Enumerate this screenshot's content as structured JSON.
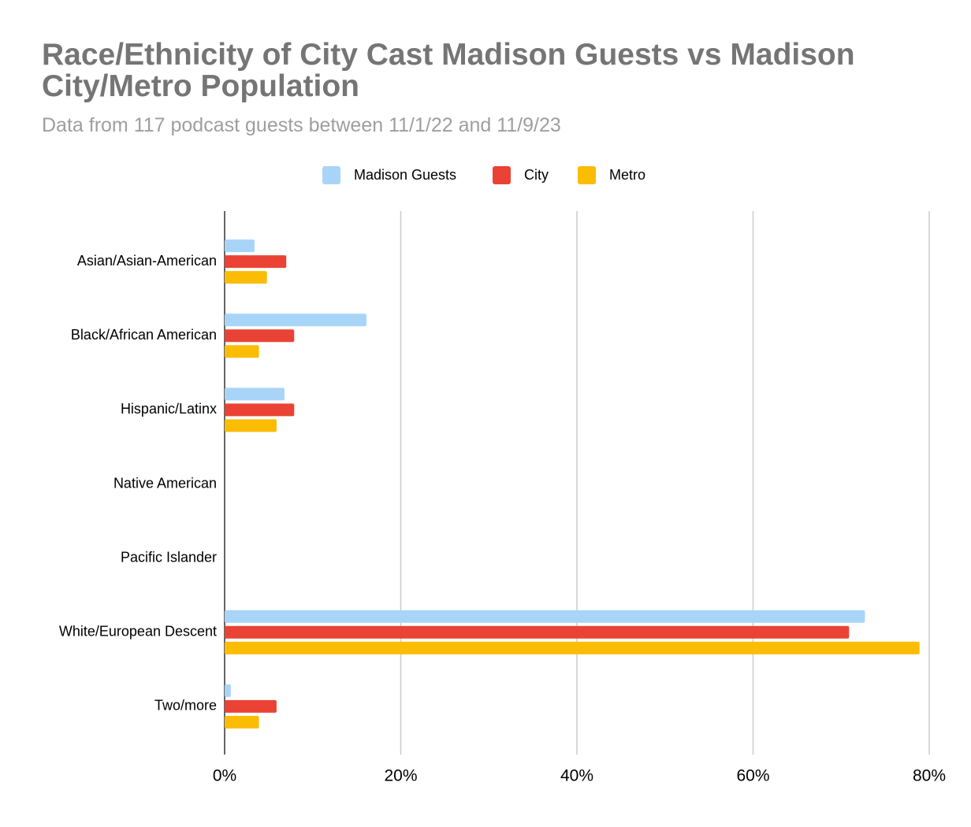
{
  "chart_data": {
    "type": "hbar",
    "title": "Race/Ethnicity of City Cast Madison Guests vs Madison City/Metro Population",
    "subtitle": "Data from 117 podcast guests between 11/1/22 and 11/9/23",
    "categories": [
      "Asian/Asian-American",
      "Black/African American",
      "Hispanic/Latinx",
      "Native American",
      "Pacific Islander",
      "White/European Descent",
      "Two/more"
    ],
    "series": [
      {
        "name": "Madison Guests",
        "color": "#a8d5f7",
        "values": [
          3.4,
          16.1,
          6.8,
          0,
          0,
          72.7,
          0.7
        ]
      },
      {
        "name": "City",
        "color": "#ea4335",
        "values": [
          7.0,
          7.9,
          7.9,
          0,
          0,
          70.9,
          5.9
        ]
      },
      {
        "name": "Metro",
        "color": "#fbbc04",
        "values": [
          4.8,
          3.9,
          5.9,
          0,
          0,
          78.9,
          3.9
        ]
      }
    ],
    "xlim": [
      0,
      80
    ],
    "xticks": [
      {
        "value": 0,
        "label": "0%"
      },
      {
        "value": 20,
        "label": "20%"
      },
      {
        "value": 40,
        "label": "40%"
      },
      {
        "value": 60,
        "label": "60%"
      },
      {
        "value": 80,
        "label": "80%"
      }
    ],
    "grid": true,
    "legend": "top"
  }
}
